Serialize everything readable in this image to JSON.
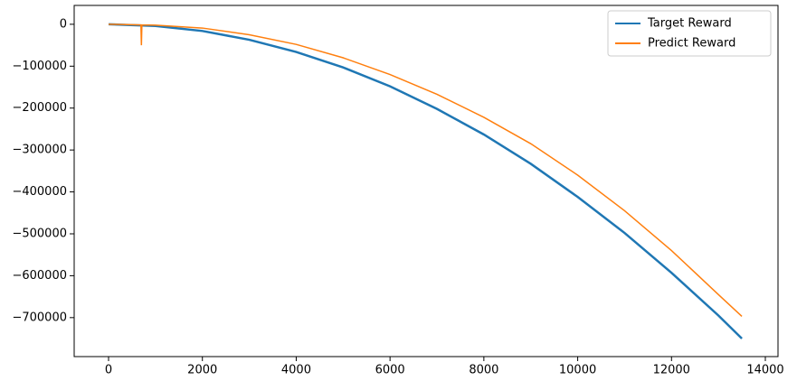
{
  "chart_data": {
    "type": "line",
    "series": [
      {
        "name": "Target Reward",
        "color": "#1f77b4",
        "x": [
          0,
          1000,
          2000,
          3000,
          4000,
          5000,
          6000,
          7000,
          8000,
          9000,
          10000,
          11000,
          12000,
          13000,
          13500
        ],
        "values": [
          0,
          -4000,
          -16000,
          -37000,
          -66000,
          -103000,
          -148000,
          -202000,
          -263000,
          -333000,
          -412000,
          -498000,
          -593000,
          -695000,
          -750000
        ]
      },
      {
        "name": "Predict Reward",
        "color": "#ff7f0e",
        "x": [
          0,
          500,
          690,
          700,
          710,
          1000,
          2000,
          3000,
          4000,
          5000,
          6000,
          7000,
          8000,
          9000,
          10000,
          11000,
          12000,
          13000,
          13500
        ],
        "values": [
          0,
          -1000,
          -1500,
          -50000,
          -1500,
          -2000,
          -9000,
          -25000,
          -48000,
          -80000,
          -120000,
          -167000,
          -222000,
          -285000,
          -360000,
          -445000,
          -540000,
          -645000,
          -697000
        ]
      }
    ],
    "xlim": [
      -733,
      14270
    ],
    "ylim": [
      -793000,
      45000
    ],
    "xticks": [
      0,
      2000,
      4000,
      6000,
      8000,
      10000,
      12000,
      14000
    ],
    "yticks": [
      0,
      {
        "value": -100000,
        "label": "−100000"
      },
      {
        "value": -200000,
        "label": "−200000"
      },
      {
        "value": -300000,
        "label": "−300000"
      },
      {
        "value": -400000,
        "label": "−400000"
      },
      {
        "value": -500000,
        "label": "−500000"
      },
      {
        "value": -600000,
        "label": "−600000"
      },
      {
        "value": -700000,
        "label": "−700000"
      }
    ],
    "legend": "upper right"
  }
}
